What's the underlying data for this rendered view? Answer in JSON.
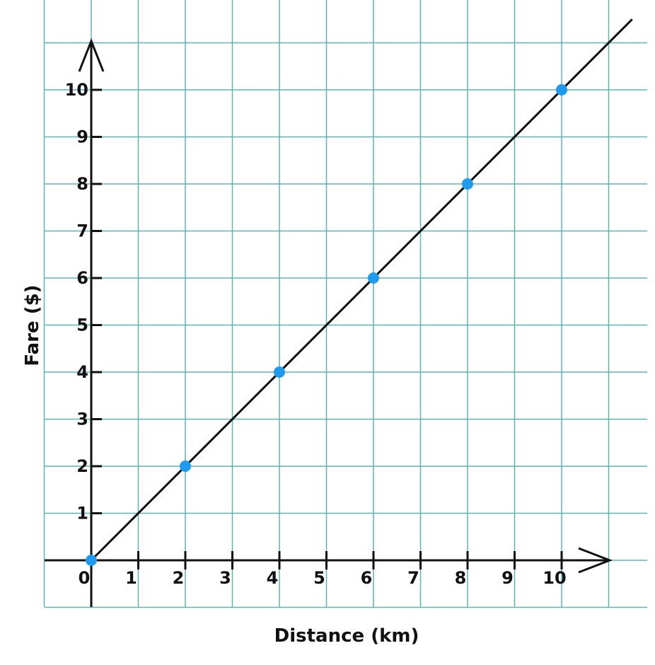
{
  "chart_data": {
    "type": "line",
    "title": "",
    "xlabel": "Distance (km)",
    "ylabel": "Fare ($)",
    "xlim": [
      0,
      10
    ],
    "ylim": [
      0,
      10
    ],
    "grid": true,
    "x_ticks": [
      "0",
      "1",
      "2",
      "3",
      "4",
      "5",
      "6",
      "7",
      "8",
      "9",
      "10"
    ],
    "y_ticks": [
      "1",
      "2",
      "3",
      "4",
      "5",
      "6",
      "7",
      "8",
      "9",
      "10"
    ],
    "series": [
      {
        "name": "Fare",
        "x": [
          0,
          2,
          4,
          6,
          8,
          10
        ],
        "y": [
          0,
          2,
          4,
          6,
          8,
          10
        ],
        "line_extends_beyond": true
      }
    ],
    "colors": {
      "grid": "#5fb3b3",
      "axis": "#111111",
      "line": "#111111",
      "point": "#1e9bef"
    }
  }
}
